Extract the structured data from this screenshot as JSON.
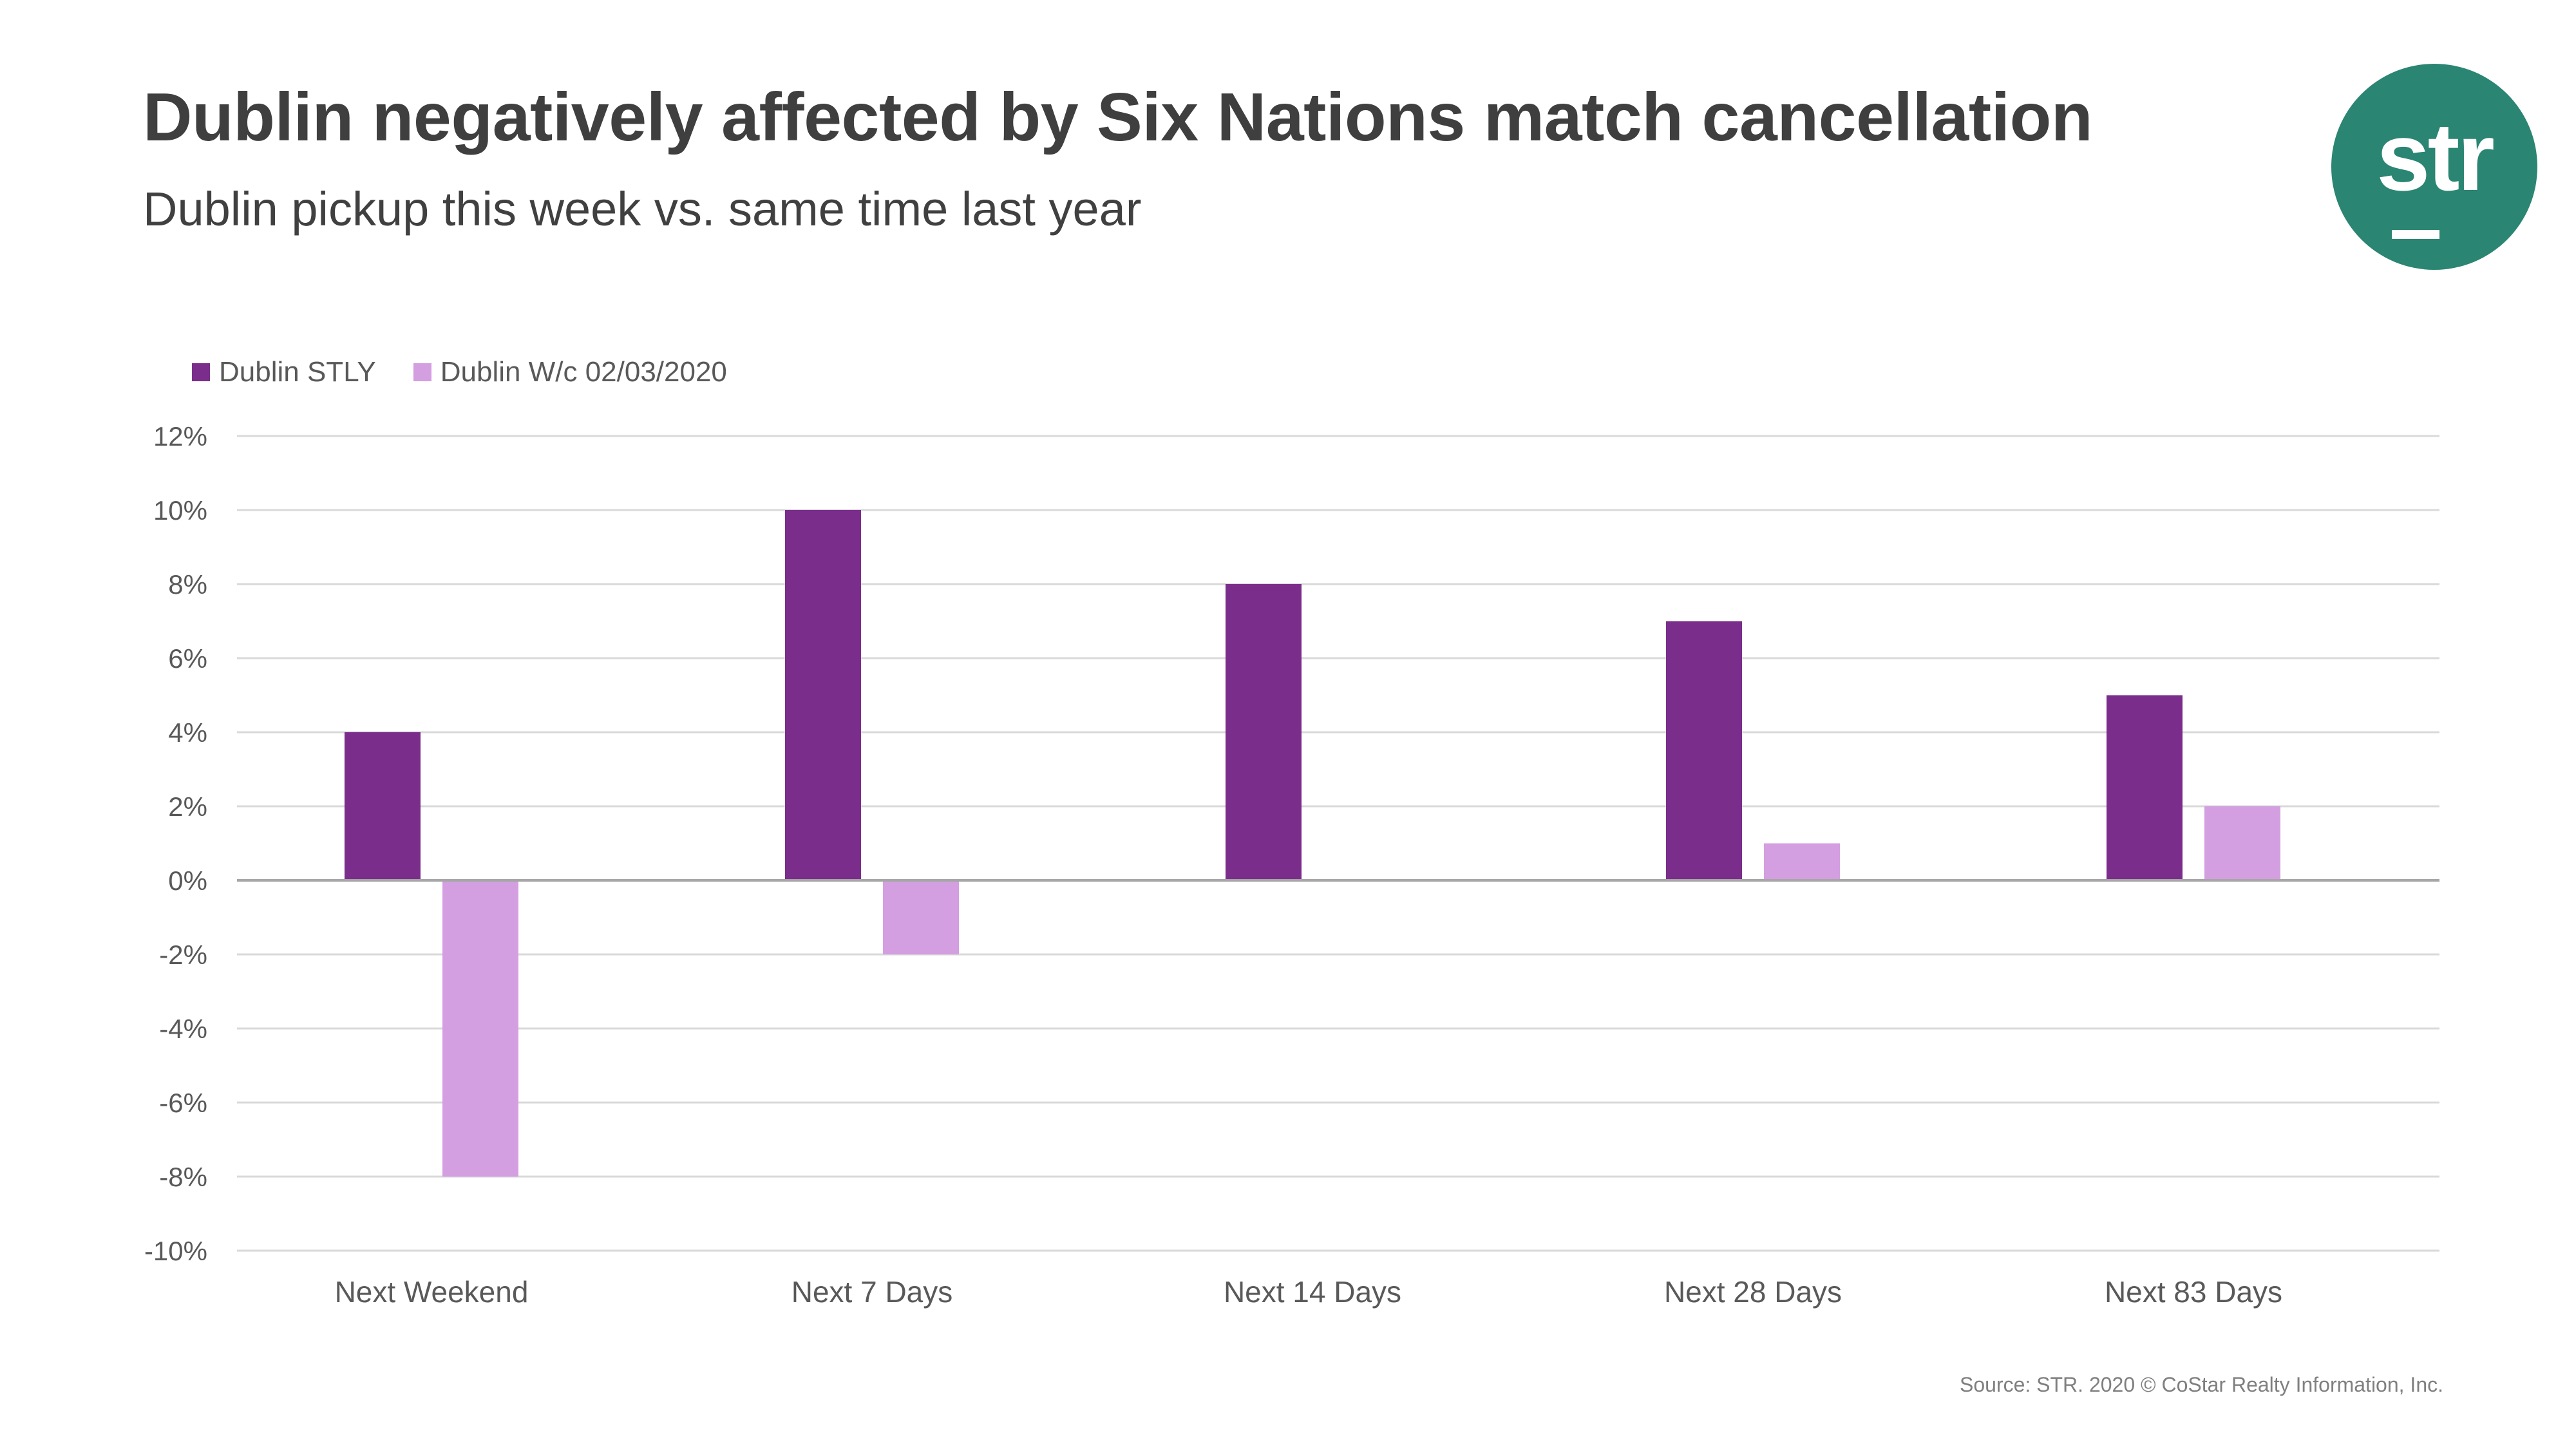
{
  "header": {
    "title": "Dublin negatively affected by Six Nations match cancellation",
    "subtitle": "Dublin pickup this week vs. same time last year"
  },
  "logo": {
    "text": "str"
  },
  "footer": {
    "source": "Source: STR. 2020 © CoStar Realty Information, Inc."
  },
  "colors": {
    "stly": "#7b2d8b",
    "wc": "#d49fe0",
    "grid": "#d9d9d9",
    "zero_line": "#a6a6a6",
    "logo_bg": "#2a8572"
  },
  "chart_data": {
    "type": "bar",
    "categories": [
      "Next  Weekend",
      "Next 7 Days",
      "Next 14 Days",
      "Next 28 Days",
      "Next 83 Days"
    ],
    "series": [
      {
        "name": "Dublin STLY",
        "values": [
          4,
          10,
          8,
          7,
          5
        ]
      },
      {
        "name": "Dublin W/c 02/03/2020",
        "values": [
          -8,
          -2,
          0,
          1,
          2
        ]
      }
    ],
    "ylim": [
      -10,
      12
    ],
    "yticks": [
      -10,
      -8,
      -6,
      -4,
      -2,
      0,
      2,
      4,
      6,
      8,
      10,
      12
    ],
    "ytick_labels": [
      "-10%",
      "-8%",
      "-6%",
      "-4%",
      "-2%",
      "0%",
      "2%",
      "4%",
      "6%",
      "8%",
      "10%",
      "12%"
    ],
    "ylabel": "",
    "xlabel": "",
    "grid": true,
    "legend": "top-left"
  }
}
